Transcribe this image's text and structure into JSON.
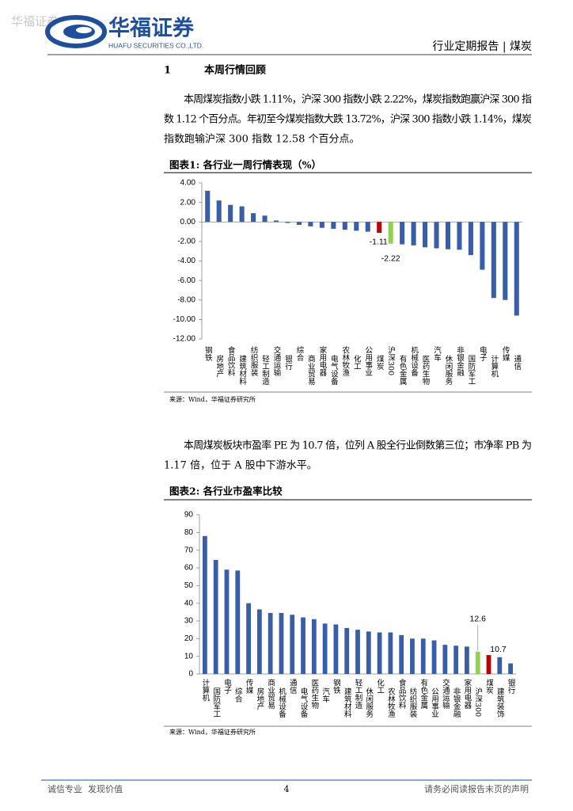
{
  "header": {
    "watermark": "华福证券",
    "company": "华福证券",
    "company_en": "HUAFU SECURITIES CO.,LTD.",
    "report": "行业定期报告 | 煤炭"
  },
  "section": {
    "number": "1",
    "title": "本周行情回顾"
  },
  "paragraphs": [
    [
      "本周煤炭指数小跌 1.11%，沪深 300 指数小跌 2.22%，煤炭指数跑赢沪深 300 指",
      "数 1.12 个百分点。年初至今煤炭指数大跌 13.72%，沪深 300 指数小跌 1.14%，煤炭",
      "指数跑输沪深 300 指数 12.58 个百分点。"
    ],
    [
      "本周煤炭板块市盈率 PE 为 10.7 倍，位列 A 股全行业倒数第三位；市净率 PB 为",
      "1.17 倍，位于 A 股中下游水平。"
    ]
  ],
  "chart_data": [
    {
      "type": "bar",
      "title": "图表1:  各行业一周行情表现（%）",
      "source": "来源：Wind，华福证券研究所",
      "categories": [
        "钢铁",
        "房地产",
        "食品饮料",
        "建筑材料",
        "纺织服装",
        "轻工制造",
        "交通运输",
        "银行",
        "综合",
        "商业贸易",
        "家用电器",
        "电气设备",
        "农林牧渔",
        "化工",
        "公用事业",
        "煤炭",
        "沪深300",
        "有色金属",
        "机械设备",
        "医药生物",
        "汽车",
        "休闲服务",
        "非银金融",
        "国防军工",
        "电子",
        "计算机",
        "传媒",
        "通信"
      ],
      "values": [
        3.2,
        2.2,
        1.75,
        1.6,
        0.9,
        0.65,
        0.15,
        -0.1,
        -0.3,
        -0.45,
        -0.6,
        -0.7,
        -0.8,
        -0.9,
        -1.0,
        -1.11,
        -2.22,
        -2.3,
        -2.4,
        -2.6,
        -2.7,
        -2.8,
        -2.85,
        -3.4,
        -4.9,
        -7.8,
        -8.0,
        -9.6
      ],
      "value_labels": [
        null,
        null,
        null,
        null,
        null,
        null,
        null,
        null,
        null,
        null,
        null,
        null,
        null,
        null,
        null,
        "-1.11",
        "-2.22",
        null,
        null,
        null,
        null,
        null,
        null,
        null,
        null,
        null,
        null,
        null
      ],
      "colors": [
        "#3a5da8",
        "#3a5da8",
        "#3a5da8",
        "#3a5da8",
        "#3a5da8",
        "#3a5da8",
        "#3a5da8",
        "#3a5da8",
        "#3a5da8",
        "#3a5da8",
        "#3a5da8",
        "#3a5da8",
        "#3a5da8",
        "#3a5da8",
        "#3a5da8",
        "#c00000",
        "#92d050",
        "#3a5da8",
        "#3a5da8",
        "#3a5da8",
        "#3a5da8",
        "#3a5da8",
        "#3a5da8",
        "#3a5da8",
        "#3a5da8",
        "#3a5da8",
        "#3a5da8",
        "#3a5da8"
      ],
      "ylim": [
        -12,
        4
      ],
      "yticks": [
        {
          "value": 4,
          "label": "4.00"
        },
        {
          "value": 2,
          "label": "2.00"
        },
        {
          "value": 0,
          "label": "0.00"
        },
        {
          "value": -2,
          "label": "-2.00"
        },
        {
          "value": -4,
          "label": "-4.00"
        },
        {
          "value": -6,
          "label": "-6.00"
        },
        {
          "value": -8,
          "label": "-8.00"
        },
        {
          "value": -10,
          "label": "-10.00"
        },
        {
          "value": -12,
          "label": "-12.00"
        }
      ],
      "grid": false
    },
    {
      "type": "bar",
      "title": "图表2:  各行业市盈率比较",
      "source": "来源：Wind，华福证券研究所",
      "categories": [
        "计算机",
        "国防军工",
        "电子",
        "综合",
        "传媒",
        "房地产",
        "商业贸易",
        "机械设备",
        "通信",
        "电气设备",
        "医药生物",
        "汽车",
        "钢铁",
        "建筑材料",
        "轻工制造",
        "休闲服务",
        "化工",
        "农林牧渔",
        "食品饮料",
        "纺织服装",
        "有色金属",
        "公用事业",
        "交通运输",
        "非银金融",
        "家用电器",
        "沪深300",
        "煤炭",
        "建筑装饰",
        "银行"
      ],
      "values": [
        78,
        64.5,
        59,
        58.5,
        40,
        36.5,
        34.5,
        34.5,
        33.5,
        32,
        31,
        28.5,
        28,
        26,
        25,
        24,
        23.5,
        23.5,
        22,
        20,
        20,
        19,
        16.5,
        16,
        15.5,
        12.6,
        10.7,
        9.5,
        6
      ],
      "value_labels": [
        null,
        null,
        null,
        null,
        null,
        null,
        null,
        null,
        null,
        null,
        null,
        null,
        null,
        null,
        null,
        null,
        null,
        null,
        null,
        null,
        null,
        null,
        null,
        null,
        null,
        "12.6",
        "10.7",
        null,
        null
      ],
      "colors": [
        "#3a5da8",
        "#3a5da8",
        "#3a5da8",
        "#3a5da8",
        "#3a5da8",
        "#3a5da8",
        "#3a5da8",
        "#3a5da8",
        "#3a5da8",
        "#3a5da8",
        "#3a5da8",
        "#3a5da8",
        "#3a5da8",
        "#3a5da8",
        "#3a5da8",
        "#3a5da8",
        "#3a5da8",
        "#3a5da8",
        "#3a5da8",
        "#3a5da8",
        "#3a5da8",
        "#3a5da8",
        "#3a5da8",
        "#3a5da8",
        "#3a5da8",
        "#92d050",
        "#c00000",
        "#3a5da8",
        "#3a5da8"
      ],
      "ylim": [
        0,
        90
      ],
      "yticks": [
        0,
        10,
        20,
        30,
        40,
        50,
        60,
        70,
        80,
        90
      ],
      "grid": false
    }
  ]
}
